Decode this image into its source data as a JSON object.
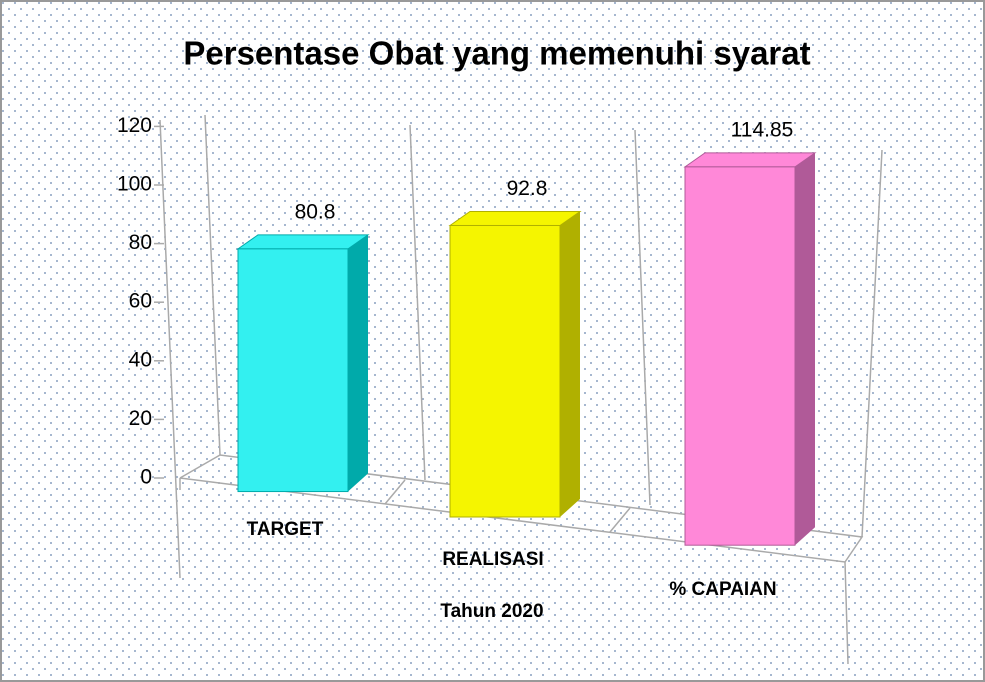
{
  "chart_data": {
    "type": "bar3d",
    "title": "Persentase Obat yang memenuhi syarat",
    "x_label": "Tahun 2020",
    "categories": [
      "TARGET",
      "REALISASI",
      "% CAPAIAN"
    ],
    "values": [
      80.8,
      92.8,
      114.85
    ],
    "colors": [
      "#33f0f0",
      "#f5f500",
      "#ff88d8"
    ],
    "side_colors": [
      "#00aaaa",
      "#b0b000",
      "#b05a98"
    ],
    "ylim": [
      0,
      120
    ],
    "yticks": [
      0,
      20,
      40,
      60,
      80,
      100,
      120
    ],
    "grid": false
  }
}
